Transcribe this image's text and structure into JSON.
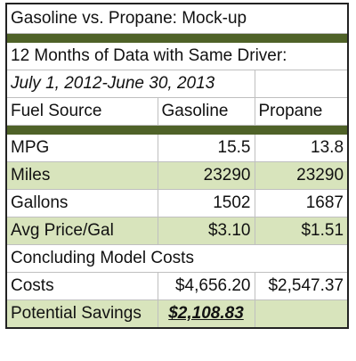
{
  "title": "Gasoline vs. Propane: Mock-up",
  "subtitle": "12 Months of Data with Same Driver:",
  "date_range": "July 1, 2012-June 30, 2013",
  "header": {
    "col1": "Fuel Source",
    "col2": "Gasoline",
    "col3": "Propane"
  },
  "rows": [
    {
      "label": "MPG",
      "gasoline": "15.5",
      "propane": "13.8",
      "shaded": false
    },
    {
      "label": "Miles",
      "gasoline": "23290",
      "propane": "23290",
      "shaded": true
    },
    {
      "label": "Gallons",
      "gasoline": "1502",
      "propane": "1687",
      "shaded": false
    },
    {
      "label": "Avg Price/Gal",
      "gasoline": "$3.10",
      "propane": "$1.51",
      "shaded": true
    }
  ],
  "section_heading": "Concluding Model Costs",
  "costs": {
    "label": "Costs",
    "gasoline": "$4,656.20",
    "propane": "$2,547.37"
  },
  "savings": {
    "label": "Potential Savings",
    "value": "$2,108.83"
  },
  "colors": {
    "band": "#4f6228",
    "shade": "#d8e4bc"
  }
}
